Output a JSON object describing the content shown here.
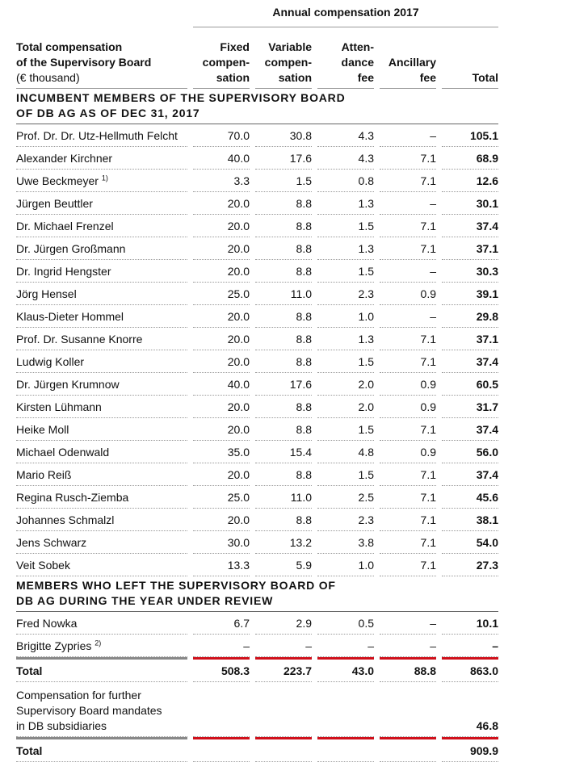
{
  "header": {
    "group": "Annual compensation 2017",
    "title": "Total compensation\nof the Supervisory Board",
    "unit": "(€ thousand)",
    "columns": [
      "Fixed\ncompen-\nsation",
      "Variable\ncompen-\nsation",
      "Atten-\ndance\nfee",
      "Ancillary\nfee",
      "Total"
    ]
  },
  "sections": [
    {
      "heading": "INCUMBENT MEMBERS OF THE SUPERVISORY BOARD\nOF DB AG AS OF DEC 31, 2017",
      "rows": [
        {
          "name": "Prof. Dr. Dr. Utz-Hellmuth Felcht",
          "values": [
            "70.0",
            "30.8",
            "4.3",
            "–",
            "105.1"
          ]
        },
        {
          "name": "Alexander Kirchner",
          "values": [
            "40.0",
            "17.6",
            "4.3",
            "7.1",
            "68.9"
          ]
        },
        {
          "name": "Uwe Beckmeyer",
          "note": "1)",
          "values": [
            "3.3",
            "1.5",
            "0.8",
            "7.1",
            "12.6"
          ]
        },
        {
          "name": "Jürgen Beuttler",
          "values": [
            "20.0",
            "8.8",
            "1.3",
            "–",
            "30.1"
          ]
        },
        {
          "name": "Dr. Michael Frenzel",
          "values": [
            "20.0",
            "8.8",
            "1.5",
            "7.1",
            "37.4"
          ]
        },
        {
          "name": "Dr. Jürgen Großmann",
          "values": [
            "20.0",
            "8.8",
            "1.3",
            "7.1",
            "37.1"
          ]
        },
        {
          "name": "Dr. Ingrid Hengster",
          "values": [
            "20.0",
            "8.8",
            "1.5",
            "–",
            "30.3"
          ]
        },
        {
          "name": "Jörg Hensel",
          "values": [
            "25.0",
            "11.0",
            "2.3",
            "0.9",
            "39.1"
          ]
        },
        {
          "name": "Klaus-Dieter Hommel",
          "values": [
            "20.0",
            "8.8",
            "1.0",
            "–",
            "29.8"
          ]
        },
        {
          "name": "Prof. Dr. Susanne Knorre",
          "values": [
            "20.0",
            "8.8",
            "1.3",
            "7.1",
            "37.1"
          ]
        },
        {
          "name": "Ludwig Koller",
          "values": [
            "20.0",
            "8.8",
            "1.5",
            "7.1",
            "37.4"
          ]
        },
        {
          "name": "Dr. Jürgen Krumnow",
          "values": [
            "40.0",
            "17.6",
            "2.0",
            "0.9",
            "60.5"
          ]
        },
        {
          "name": "Kirsten Lühmann",
          "values": [
            "20.0",
            "8.8",
            "2.0",
            "0.9",
            "31.7"
          ]
        },
        {
          "name": "Heike Moll",
          "values": [
            "20.0",
            "8.8",
            "1.5",
            "7.1",
            "37.4"
          ]
        },
        {
          "name": "Michael Odenwald",
          "values": [
            "35.0",
            "15.4",
            "4.8",
            "0.9",
            "56.0"
          ]
        },
        {
          "name": "Mario Reiß",
          "values": [
            "20.0",
            "8.8",
            "1.5",
            "7.1",
            "37.4"
          ]
        },
        {
          "name": "Regina Rusch-Ziemba",
          "values": [
            "25.0",
            "11.0",
            "2.5",
            "7.1",
            "45.6"
          ]
        },
        {
          "name": "Johannes Schmalzl",
          "values": [
            "20.0",
            "8.8",
            "2.3",
            "7.1",
            "38.1"
          ]
        },
        {
          "name": "Jens Schwarz",
          "values": [
            "30.0",
            "13.2",
            "3.8",
            "7.1",
            "54.0"
          ]
        },
        {
          "name": "Veit Sobek",
          "values": [
            "13.3",
            "5.9",
            "1.0",
            "7.1",
            "27.3"
          ]
        }
      ]
    },
    {
      "heading": "MEMBERS WHO LEFT THE SUPERVISORY BOARD OF\nDB AG DURING THE YEAR UNDER REVIEW",
      "rows": [
        {
          "name": "Fred Nowka",
          "values": [
            "6.7",
            "2.9",
            "0.5",
            "–",
            "10.1"
          ]
        },
        {
          "name": "Brigitte Zypries",
          "note": "2)",
          "values": [
            "–",
            "–",
            "–",
            "–",
            "–"
          ]
        }
      ]
    }
  ],
  "total": {
    "label": "Total",
    "values": [
      "508.3",
      "223.7",
      "43.0",
      "88.8",
      "863.0"
    ]
  },
  "further": {
    "label": "Compensation for further\nSupervisory Board mandates\nin DB subsidiaries",
    "value": "46.8"
  },
  "grand_total": {
    "label": "Total",
    "value": "909.9"
  }
}
